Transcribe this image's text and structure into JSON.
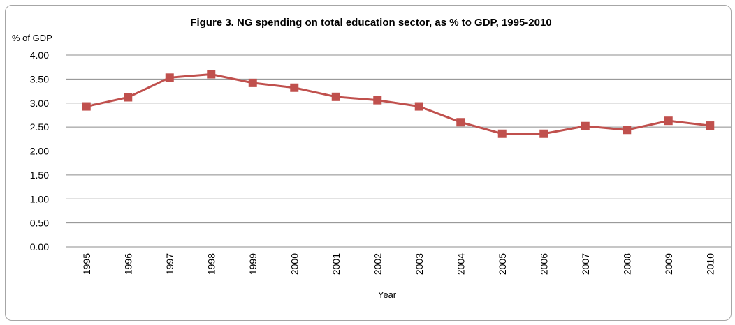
{
  "chart_data": {
    "type": "line",
    "title": "Figure 3.  NG spending on total education sector, as % to GDP, 1995-2010",
    "ylabel": "% of GDP",
    "xlabel": "Year",
    "ylim": [
      0,
      4
    ],
    "yticks": [
      "0.00",
      "0.50",
      "1.00",
      "1.50",
      "2.00",
      "2.50",
      "3.00",
      "3.50",
      "4.00"
    ],
    "grid": true,
    "categories": [
      "1995",
      "1996",
      "1997",
      "1998",
      "1999",
      "2000",
      "2001",
      "2002",
      "2003",
      "2004",
      "2005",
      "2006",
      "2007",
      "2008",
      "2009",
      "2010"
    ],
    "series": [
      {
        "values": [
          2.93,
          3.12,
          3.53,
          3.6,
          3.42,
          3.32,
          3.13,
          3.06,
          2.93,
          2.6,
          2.36,
          2.36,
          2.52,
          2.44,
          2.63,
          2.53
        ],
        "color": "#c0504d"
      }
    ]
  }
}
